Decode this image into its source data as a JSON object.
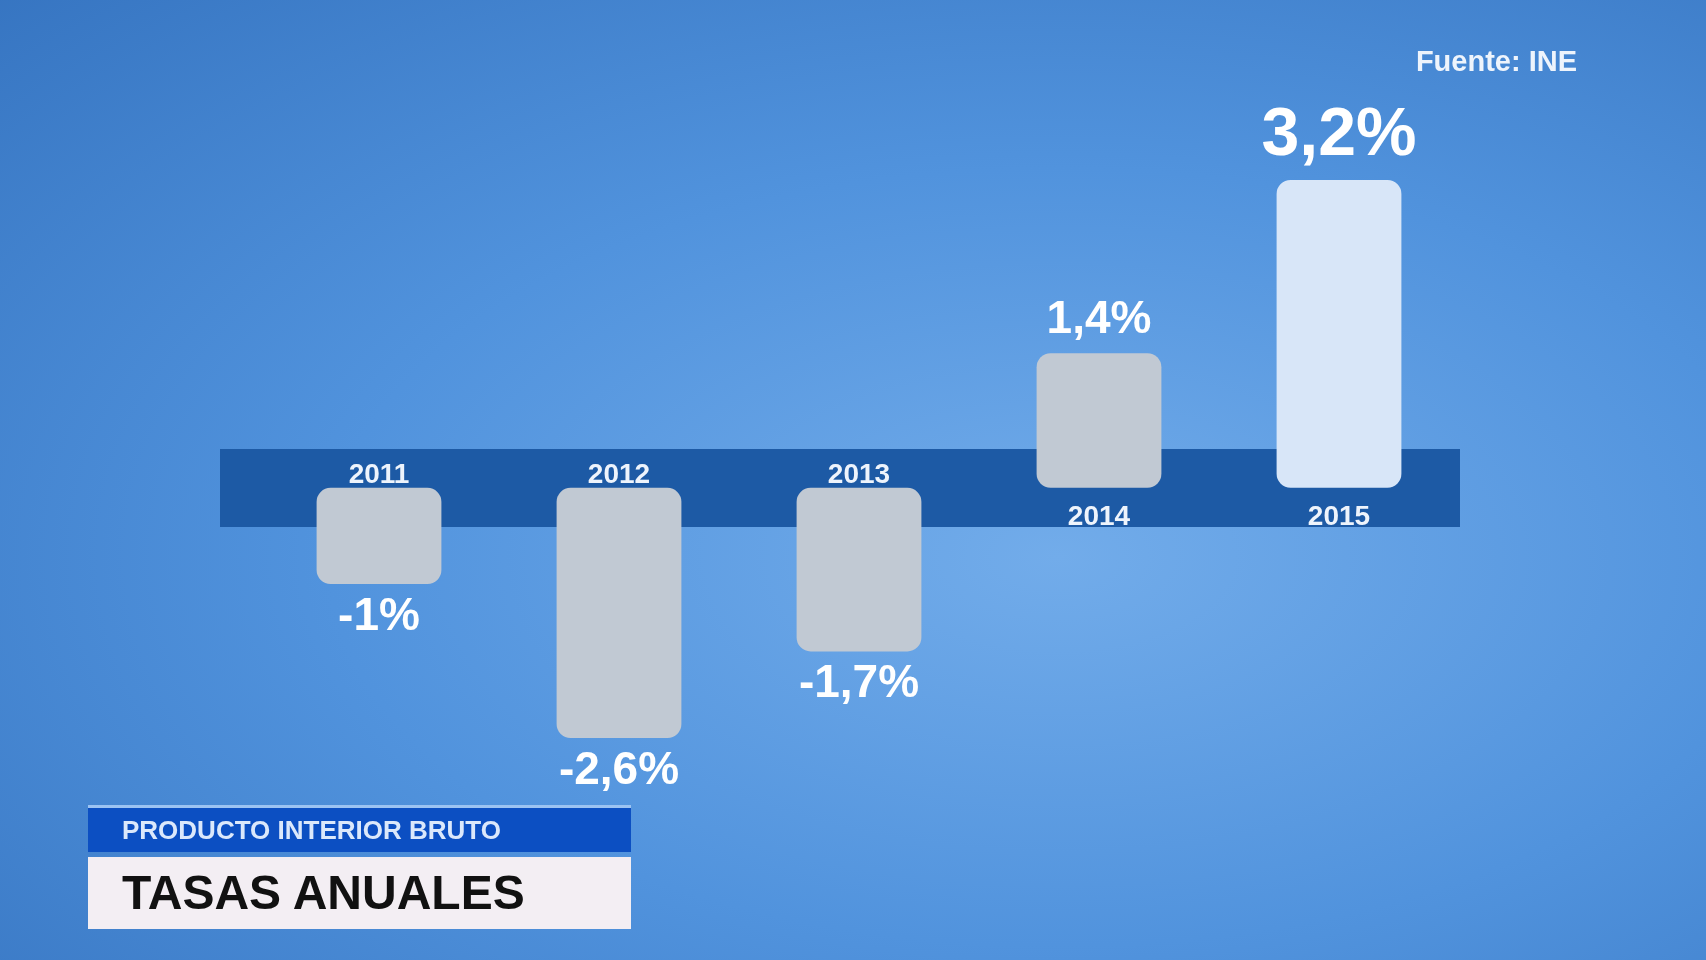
{
  "chart_data": {
    "type": "bar",
    "title": "TASAS ANUALES",
    "subtitle": "PRODUCTO INTERIOR BRUTO",
    "annotations": [
      "Fuente: INE"
    ],
    "categories": [
      "2011",
      "2012",
      "2013",
      "2014",
      "2015"
    ],
    "values": [
      -1,
      -2.6,
      -1.7,
      1.4,
      3.2
    ],
    "colors": [
      "#c1c9d3",
      "#c1c9d3",
      "#c1c9d3",
      "#c1c9d3",
      "#d8e6f8"
    ],
    "value_labels": [
      "-1%",
      "-2,6%",
      "-1,7%",
      "1,4%",
      "3,2%"
    ],
    "tick_labels": "x"
  }
}
